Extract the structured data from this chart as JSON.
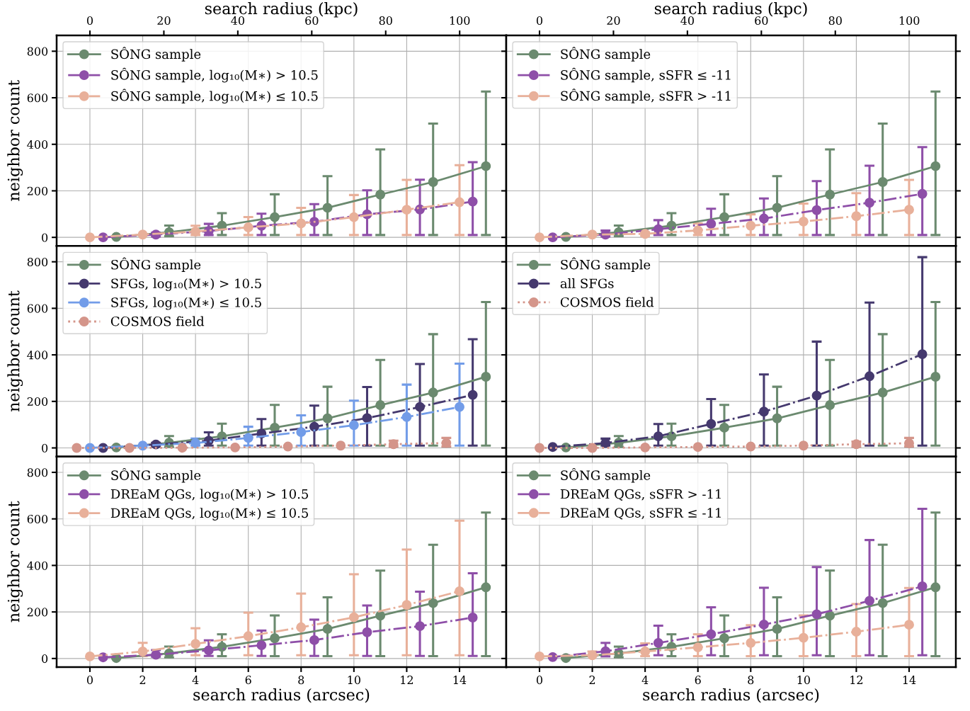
{
  "chart_data": [
    {
      "type": "line",
      "ylabel": "neighbor count",
      "x2label": "search radius (kpc)",
      "xlim": [
        -1.26,
        15.77
      ],
      "xticks": [
        0,
        2,
        4,
        6,
        8,
        10,
        12,
        14
      ],
      "ylim": [
        -37,
        868
      ],
      "yticks": [
        0,
        200,
        400,
        600,
        800
      ],
      "x2lim": [
        -9.0,
        112.6
      ],
      "x2ticks": [
        0,
        20,
        40,
        60,
        80,
        100
      ],
      "grid": true,
      "legend": "top left",
      "marker": "circle",
      "tick_labels": "y",
      "series": [
        {
          "name": "SÔNG sample",
          "color": "#6b8a6f",
          "line_style": "solid",
          "x": [
            1,
            3,
            5,
            7,
            9,
            11,
            13,
            15
          ],
          "values": [
            2,
            22,
            50,
            87,
            127,
            184,
            238,
            306
          ],
          "errors": [
            [
              0,
              5
            ],
            [
              5,
              51
            ],
            [
              10,
              104
            ],
            [
              10,
              185
            ],
            [
              10,
              263
            ],
            [
              10,
              378
            ],
            [
              10,
              489
            ],
            [
              10,
              627
            ]
          ]
        },
        {
          "name": "SÔNG sample, log₁₀(M∗) > 10.5",
          "color": "#8e4fa8",
          "line_style": "dashdot",
          "x": [
            0.5,
            2.5,
            4.5,
            6.5,
            8.5,
            10.5,
            12.5,
            14.5
          ],
          "values": [
            0,
            12,
            27,
            50,
            67,
            99,
            120,
            154
          ],
          "errors": [
            null,
            [
              4,
              20
            ],
            [
              10,
              58
            ],
            [
              10,
              102
            ],
            [
              10,
              143
            ],
            [
              10,
              202
            ],
            [
              10,
              248
            ],
            [
              10,
              323
            ]
          ]
        },
        {
          "name": "SÔNG sample, log₁₀(M∗) ≤ 10.5",
          "color": "#e8b09a",
          "line_style": "dashdot",
          "x": [
            0,
            2,
            4,
            6,
            8,
            10,
            12,
            14
          ],
          "values": [
            0,
            12,
            25,
            43,
            60,
            87,
            119,
            151
          ],
          "errors": [
            null,
            null,
            [
              10,
              50
            ],
            [
              10,
              87
            ],
            [
              10,
              127
            ],
            [
              10,
              182
            ],
            [
              10,
              247
            ],
            [
              10,
              310
            ]
          ]
        }
      ]
    },
    {
      "type": "line",
      "x2label": "search radius (kpc)",
      "xlim": [
        -1.26,
        15.77
      ],
      "xticks": [
        0,
        2,
        4,
        6,
        8,
        10,
        12,
        14
      ],
      "ylim": [
        -37,
        868
      ],
      "yticks": [
        0,
        200,
        400,
        600,
        800
      ],
      "x2lim": [
        -9.0,
        112.6
      ],
      "x2ticks": [
        0,
        20,
        40,
        60,
        80,
        100
      ],
      "grid": true,
      "legend": "top left",
      "marker": "circle",
      "tick_labels": false,
      "series": [
        {
          "name": "SÔNG sample",
          "color": "#6b8a6f",
          "line_style": "solid",
          "x": [
            1,
            3,
            5,
            7,
            9,
            11,
            13,
            15
          ],
          "values": [
            2,
            22,
            50,
            87,
            127,
            184,
            238,
            306
          ],
          "errors": [
            [
              0,
              5
            ],
            [
              5,
              51
            ],
            [
              10,
              104
            ],
            [
              10,
              185
            ],
            [
              10,
              263
            ],
            [
              10,
              378
            ],
            [
              10,
              489
            ],
            [
              10,
              627
            ]
          ]
        },
        {
          "name": "SÔNG sample, sSFR ≤ -11",
          "color": "#8e4fa8",
          "line_style": "dashdot",
          "x": [
            0.5,
            2.5,
            4.5,
            6.5,
            8.5,
            10.5,
            12.5,
            14.5
          ],
          "values": [
            0,
            12,
            35,
            58,
            81,
            117,
            149,
            187
          ],
          "errors": [
            null,
            [
              4,
              29
            ],
            [
              10,
              74
            ],
            [
              10,
              123
            ],
            [
              10,
              167
            ],
            [
              10,
              242
            ],
            [
              10,
              308
            ],
            [
              10,
              388
            ]
          ]
        },
        {
          "name": "SÔNG sample, sSFR > -11",
          "color": "#e8b09a",
          "line_style": "dashdot",
          "x": [
            0,
            2,
            4,
            6,
            8,
            10,
            12,
            14
          ],
          "values": [
            0,
            12,
            15,
            30,
            50,
            68,
            91,
            119
          ],
          "errors": [
            null,
            null,
            [
              6,
              22
            ],
            [
              10,
              60
            ],
            [
              10,
              99
            ],
            [
              10,
              145
            ],
            [
              10,
              190
            ],
            [
              10,
              247
            ]
          ]
        }
      ]
    },
    {
      "type": "line",
      "ylabel": "neighbor count",
      "xlim": [
        -1.26,
        15.77
      ],
      "xticks": [
        0,
        2,
        4,
        6,
        8,
        10,
        12,
        14
      ],
      "ylim": [
        -37,
        868
      ],
      "yticks": [
        0,
        200,
        400,
        600,
        800
      ],
      "grid": true,
      "legend": "top left",
      "marker": "circle",
      "tick_labels": "y",
      "series": [
        {
          "name": "SÔNG sample",
          "color": "#6b8a6f",
          "line_style": "solid",
          "x": [
            1,
            3,
            5,
            7,
            9,
            11,
            13,
            15
          ],
          "values": [
            2,
            22,
            50,
            87,
            127,
            184,
            238,
            306
          ],
          "errors": [
            [
              0,
              5
            ],
            [
              5,
              51
            ],
            [
              10,
              104
            ],
            [
              10,
              185
            ],
            [
              10,
              263
            ],
            [
              10,
              378
            ],
            [
              10,
              489
            ],
            [
              10,
              627
            ]
          ]
        },
        {
          "name": "SFGs, log₁₀(M∗) > 10.5",
          "color": "#45396e",
          "line_style": "dashdot",
          "x": [
            0.5,
            2.5,
            4.5,
            6.5,
            8.5,
            10.5,
            12.5,
            14.5
          ],
          "values": [
            0,
            15,
            31,
            62,
            91,
            128,
            176,
            228
          ],
          "errors": [
            null,
            [
              6,
              22
            ],
            [
              10,
              67
            ],
            [
              10,
              124
            ],
            [
              10,
              182
            ],
            [
              10,
              262
            ],
            [
              10,
              361
            ],
            [
              10,
              467
            ]
          ]
        },
        {
          "name": "SFGs, log₁₀(M∗) ≤ 10.5",
          "color": "#729ce8",
          "line_style": "dashdot",
          "x": [
            0,
            2,
            4,
            6,
            8,
            10,
            12,
            14
          ],
          "values": [
            0,
            10,
            21,
            43,
            68,
            98,
            133,
            176
          ],
          "errors": [
            null,
            null,
            [
              10,
              40
            ],
            [
              10,
              91
            ],
            [
              10,
              140
            ],
            [
              10,
              203
            ],
            [
              10,
              272
            ],
            [
              10,
              362
            ]
          ]
        },
        {
          "name": "COSMOS field",
          "color": "#d4958a",
          "line_style": "dotted",
          "x": [
            -0.5,
            1.5,
            3.5,
            5.5,
            7.5,
            9.5,
            11.5,
            13.5
          ],
          "values": [
            0,
            0,
            1,
            2,
            6,
            10,
            16,
            21
          ],
          "errors": [
            null,
            null,
            null,
            null,
            null,
            null,
            [
              6,
              31
            ],
            [
              6,
              43
            ]
          ]
        }
      ]
    },
    {
      "type": "line",
      "xlim": [
        -1.26,
        15.77
      ],
      "xticks": [
        0,
        2,
        4,
        6,
        8,
        10,
        12,
        14
      ],
      "ylim": [
        -37,
        868
      ],
      "yticks": [
        0,
        200,
        400,
        600,
        800
      ],
      "grid": true,
      "legend": "top left",
      "marker": "circle",
      "tick_labels": false,
      "series": [
        {
          "name": "SÔNG sample",
          "color": "#6b8a6f",
          "line_style": "solid",
          "x": [
            1,
            3,
            5,
            7,
            9,
            11,
            13,
            15
          ],
          "values": [
            2,
            22,
            50,
            87,
            127,
            184,
            238,
            306
          ],
          "errors": [
            [
              0,
              5
            ],
            [
              5,
              51
            ],
            [
              10,
              104
            ],
            [
              10,
              185
            ],
            [
              10,
              263
            ],
            [
              10,
              378
            ],
            [
              10,
              489
            ],
            [
              10,
              627
            ]
          ]
        },
        {
          "name": "all SFGs",
          "color": "#45396e",
          "line_style": "dashdot",
          "x": [
            0.5,
            2.5,
            4.5,
            6.5,
            8.5,
            10.5,
            12.5,
            14.5
          ],
          "values": [
            4,
            21,
            50,
            103,
            156,
            225,
            308,
            403
          ],
          "errors": [
            null,
            [
              10,
              40
            ],
            [
              10,
              103
            ],
            [
              10,
              210
            ],
            [
              10,
              316
            ],
            [
              10,
              457
            ],
            [
              10,
              625
            ],
            [
              10,
              820
            ]
          ]
        },
        {
          "name": "COSMOS field",
          "color": "#d4958a",
          "line_style": "dotted",
          "x": [
            0,
            2,
            4,
            6,
            8,
            10,
            12,
            14
          ],
          "values": [
            0,
            0,
            2,
            4,
            6,
            10,
            16,
            20
          ],
          "errors": [
            null,
            null,
            null,
            null,
            null,
            null,
            [
              6,
              27
            ],
            [
              6,
              43
            ]
          ]
        }
      ]
    },
    {
      "type": "line",
      "ylabel": "neighbor count",
      "xlabel": "search radius (arcsec)",
      "xlim": [
        -1.26,
        15.77
      ],
      "xticks": [
        0,
        2,
        4,
        6,
        8,
        10,
        12,
        14
      ],
      "ylim": [
        -37,
        868
      ],
      "yticks": [
        0,
        200,
        400,
        600,
        800
      ],
      "grid": true,
      "legend": "top left",
      "marker": "circle",
      "series": [
        {
          "name": "SÔNG sample",
          "color": "#6b8a6f",
          "line_style": "solid",
          "x": [
            1,
            3,
            5,
            7,
            9,
            11,
            13,
            15
          ],
          "values": [
            2,
            22,
            50,
            87,
            127,
            184,
            238,
            306
          ],
          "errors": [
            [
              0,
              5
            ],
            [
              5,
              51
            ],
            [
              10,
              104
            ],
            [
              10,
              185
            ],
            [
              10,
              263
            ],
            [
              10,
              378
            ],
            [
              10,
              489
            ],
            [
              10,
              627
            ]
          ]
        },
        {
          "name": "DREaM QGs, log₁₀(M∗) > 10.5",
          "color": "#8e4fa8",
          "line_style": "dashdot",
          "x": [
            0.5,
            2.5,
            4.5,
            6.5,
            8.5,
            10.5,
            12.5,
            14.5
          ],
          "values": [
            5,
            16,
            35,
            57,
            79,
            113,
            139,
            176
          ],
          "errors": [
            null,
            [
              8,
              36
            ],
            [
              11,
              78
            ],
            [
              11,
              120
            ],
            [
              11,
              167
            ],
            [
              11,
              228
            ],
            [
              11,
              287
            ],
            [
              11,
              366
            ]
          ]
        },
        {
          "name": "DREaM QGs, log₁₀(M∗) ≤ 10.5",
          "color": "#e8b09a",
          "line_style": "dashdot",
          "x": [
            0,
            2,
            4,
            6,
            8,
            10,
            12,
            14
          ],
          "values": [
            9,
            30,
            63,
            96,
            134,
            177,
            230,
            289
          ],
          "errors": [
            null,
            [
              10,
              67
            ],
            [
              14,
              130
            ],
            [
              14,
              197
            ],
            [
              14,
              279
            ],
            [
              14,
              362
            ],
            [
              14,
              468
            ],
            [
              14,
              592
            ]
          ]
        }
      ]
    },
    {
      "type": "line",
      "xlabel": "search radius (arcsec)",
      "xlim": [
        -1.26,
        15.77
      ],
      "xticks": [
        0,
        2,
        4,
        6,
        8,
        10,
        12,
        14
      ],
      "ylim": [
        -37,
        868
      ],
      "yticks": [
        0,
        200,
        400,
        600,
        800
      ],
      "grid": true,
      "legend": "top left",
      "marker": "circle",
      "tick_labels": "x",
      "series": [
        {
          "name": "SÔNG sample",
          "color": "#6b8a6f",
          "line_style": "solid",
          "x": [
            1,
            3,
            5,
            7,
            9,
            11,
            13,
            15
          ],
          "values": [
            2,
            22,
            50,
            87,
            127,
            184,
            238,
            306
          ],
          "errors": [
            [
              0,
              5
            ],
            [
              5,
              51
            ],
            [
              10,
              104
            ],
            [
              10,
              185
            ],
            [
              10,
              263
            ],
            [
              10,
              378
            ],
            [
              10,
              489
            ],
            [
              10,
              627
            ]
          ]
        },
        {
          "name": "DREaM QGs, sSFR > -11",
          "color": "#8e4fa8",
          "line_style": "dashdot",
          "x": [
            0.5,
            2.5,
            4.5,
            6.5,
            8.5,
            10.5,
            12.5,
            14.5
          ],
          "values": [
            6,
            31,
            67,
            104,
            146,
            190,
            248,
            310
          ],
          "errors": [
            null,
            [
              9,
              67
            ],
            [
              14,
              141
            ],
            [
              14,
              220
            ],
            [
              14,
              304
            ],
            [
              14,
              393
            ],
            [
              14,
              509
            ],
            [
              14,
              643
            ]
          ]
        },
        {
          "name": "DREaM QGs, sSFR ≤ -11",
          "color": "#e8b09a",
          "line_style": "dashdot",
          "x": [
            0,
            2,
            4,
            6,
            8,
            10,
            12,
            14
          ],
          "values": [
            9,
            14,
            30,
            48,
            67,
            89,
            115,
            145
          ],
          "errors": [
            null,
            [
              10,
              30
            ],
            [
              10,
              65
            ],
            [
              10,
              104
            ],
            [
              10,
              143
            ],
            [
              10,
              185
            ],
            [
              10,
              234
            ],
            [
              10,
              303
            ]
          ]
        }
      ]
    }
  ]
}
